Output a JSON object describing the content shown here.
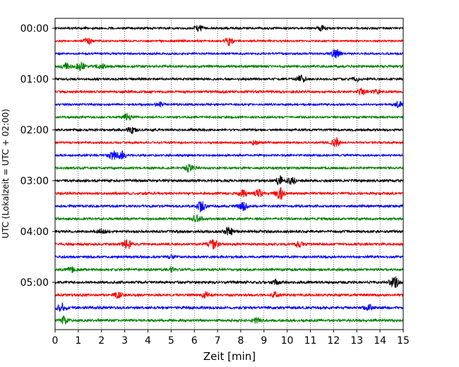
{
  "chart_data": {
    "type": "line",
    "title": "",
    "xlabel": "Zeit  [min]",
    "ylabel": "UTC (Lokalzeit = UTC + 02:00)",
    "xlim": [
      0,
      15
    ],
    "x_ticks": [
      0,
      1,
      2,
      3,
      4,
      5,
      6,
      7,
      8,
      9,
      10,
      11,
      12,
      13,
      14,
      15
    ],
    "x_tick_labels": [
      "0",
      "1",
      "2",
      "3",
      "4",
      "5",
      "6",
      "7",
      "8",
      "9",
      "10",
      "11",
      "12",
      "13",
      "14",
      "15"
    ],
    "y_tick_labels": [
      {
        "label": "00:00",
        "trace_index": 0
      },
      {
        "label": "01:00",
        "trace_index": 4
      },
      {
        "label": "02:00",
        "trace_index": 8
      },
      {
        "label": "03:00",
        "trace_index": 12
      },
      {
        "label": "04:00",
        "trace_index": 16
      },
      {
        "label": "05:00",
        "trace_index": 20
      }
    ],
    "grid": {
      "vertical": "dotted",
      "horizontal": false
    },
    "trace_minutes": 15,
    "color_cycle": [
      "#000000",
      "#ff0000",
      "#0000ff",
      "#008000"
    ],
    "series": [
      {
        "name": "00:00",
        "color": "#000000",
        "noise": 0.25,
        "events": [
          {
            "t": 6.2,
            "amp": 0.8
          },
          {
            "t": 11.5,
            "amp": 0.6
          }
        ]
      },
      {
        "name": "00:15",
        "color": "#ff0000",
        "noise": 0.22,
        "events": [
          {
            "t": 1.4,
            "amp": 0.9
          },
          {
            "t": 7.5,
            "amp": 1.2
          }
        ]
      },
      {
        "name": "00:30",
        "color": "#0000ff",
        "noise": 0.25,
        "events": [
          {
            "t": 12.1,
            "amp": 1.3
          }
        ]
      },
      {
        "name": "00:45",
        "color": "#008000",
        "noise": 0.3,
        "events": [
          {
            "t": 1.1,
            "amp": 1.0
          },
          {
            "t": 0.5,
            "amp": 0.7
          },
          {
            "t": 2.0,
            "amp": 0.6
          }
        ]
      },
      {
        "name": "01:00",
        "color": "#000000",
        "noise": 0.28,
        "events": [
          {
            "t": 10.6,
            "amp": 1.0
          },
          {
            "t": 13.0,
            "amp": 0.5
          }
        ]
      },
      {
        "name": "01:15",
        "color": "#ff0000",
        "noise": 0.3,
        "events": [
          {
            "t": 13.2,
            "amp": 0.7
          },
          {
            "t": 13.8,
            "amp": 0.6
          }
        ]
      },
      {
        "name": "01:30",
        "color": "#0000ff",
        "noise": 0.25,
        "events": [
          {
            "t": 14.8,
            "amp": 0.8
          },
          {
            "t": 4.5,
            "amp": 0.5
          }
        ]
      },
      {
        "name": "01:45",
        "color": "#008000",
        "noise": 0.25,
        "events": [
          {
            "t": 3.1,
            "amp": 0.8
          }
        ]
      },
      {
        "name": "02:00",
        "color": "#000000",
        "noise": 0.28,
        "events": [
          {
            "t": 3.3,
            "amp": 0.9
          }
        ]
      },
      {
        "name": "02:15",
        "color": "#ff0000",
        "noise": 0.25,
        "events": [
          {
            "t": 12.1,
            "amp": 1.1
          },
          {
            "t": 8.6,
            "amp": 0.5
          }
        ]
      },
      {
        "name": "02:30",
        "color": "#0000ff",
        "noise": 0.25,
        "events": [
          {
            "t": 2.5,
            "amp": 1.2
          },
          {
            "t": 2.9,
            "amp": 0.9
          }
        ]
      },
      {
        "name": "02:45",
        "color": "#008000",
        "noise": 0.28,
        "events": [
          {
            "t": 5.8,
            "amp": 1.0
          }
        ]
      },
      {
        "name": "03:00",
        "color": "#000000",
        "noise": 0.32,
        "events": [
          {
            "t": 9.7,
            "amp": 1.2
          },
          {
            "t": 10.2,
            "amp": 0.8
          }
        ]
      },
      {
        "name": "03:15",
        "color": "#ff0000",
        "noise": 0.3,
        "events": [
          {
            "t": 9.7,
            "amp": 1.5
          },
          {
            "t": 8.8,
            "amp": 1.0
          },
          {
            "t": 8.1,
            "amp": 0.8
          }
        ]
      },
      {
        "name": "03:30",
        "color": "#0000ff",
        "noise": 0.3,
        "events": [
          {
            "t": 6.3,
            "amp": 1.3
          },
          {
            "t": 8.1,
            "amp": 1.0
          }
        ]
      },
      {
        "name": "03:45",
        "color": "#008000",
        "noise": 0.28,
        "events": [
          {
            "t": 6.1,
            "amp": 0.9
          }
        ]
      },
      {
        "name": "04:00",
        "color": "#000000",
        "noise": 0.32,
        "events": [
          {
            "t": 7.5,
            "amp": 1.0
          },
          {
            "t": 2.0,
            "amp": 0.5
          }
        ]
      },
      {
        "name": "04:15",
        "color": "#ff0000",
        "noise": 0.3,
        "events": [
          {
            "t": 3.1,
            "amp": 1.3
          },
          {
            "t": 6.8,
            "amp": 1.3
          },
          {
            "t": 10.5,
            "amp": 0.7
          }
        ]
      },
      {
        "name": "04:30",
        "color": "#0000ff",
        "noise": 0.28,
        "events": [
          {
            "t": 5.0,
            "amp": 0.4
          }
        ]
      },
      {
        "name": "04:45",
        "color": "#008000",
        "noise": 0.3,
        "events": [
          {
            "t": 0.7,
            "amp": 0.7
          },
          {
            "t": 5.0,
            "amp": 0.6
          }
        ]
      },
      {
        "name": "05:00",
        "color": "#000000",
        "noise": 0.32,
        "events": [
          {
            "t": 14.6,
            "amp": 1.4
          },
          {
            "t": 9.5,
            "amp": 0.6
          }
        ]
      },
      {
        "name": "05:15",
        "color": "#ff0000",
        "noise": 0.3,
        "events": [
          {
            "t": 6.5,
            "amp": 0.7
          },
          {
            "t": 2.7,
            "amp": 0.6
          },
          {
            "t": 9.5,
            "amp": 0.7
          }
        ]
      },
      {
        "name": "05:30",
        "color": "#0000ff",
        "noise": 0.32,
        "events": [
          {
            "t": 0.3,
            "amp": 1.2
          },
          {
            "t": 13.5,
            "amp": 0.7
          }
        ]
      },
      {
        "name": "05:45",
        "color": "#008000",
        "noise": 0.3,
        "events": [
          {
            "t": 0.4,
            "amp": 1.0
          },
          {
            "t": 8.7,
            "amp": 0.6
          }
        ]
      }
    ]
  }
}
